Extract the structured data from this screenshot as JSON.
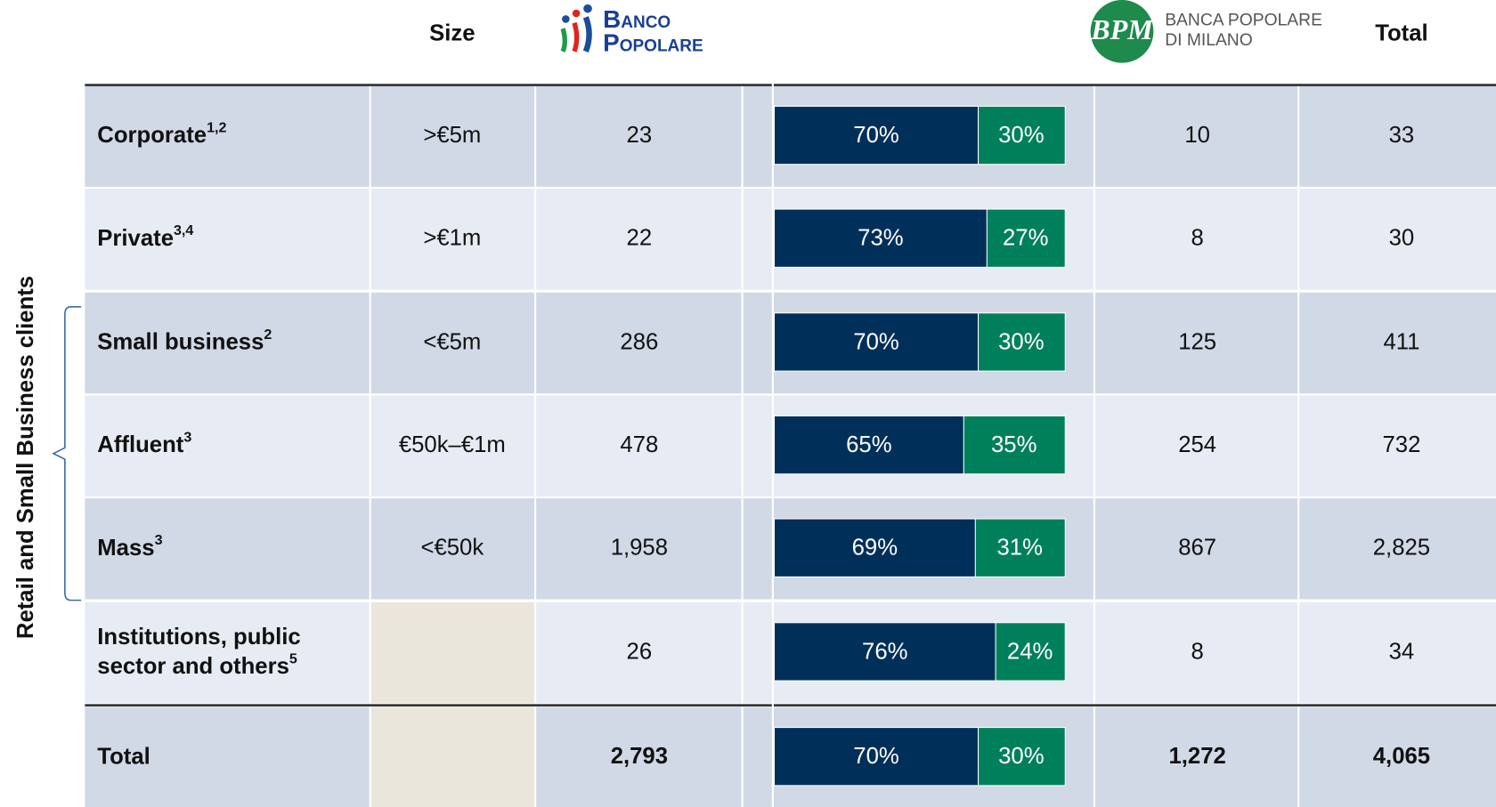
{
  "header": {
    "size": "Size",
    "banco_popolare": [
      "Banco",
      "Popolare"
    ],
    "bpm_logo": "BPM",
    "bpm": [
      "BANCA POPOLARE",
      "DI MILANO"
    ],
    "total": "Total"
  },
  "side_label": "Retail and Small Business clients",
  "rows": [
    {
      "name": [
        "Corporate"
      ],
      "note": "1,2",
      "size": ">€5m",
      "banco_popolare": "23",
      "split": [
        {
          "value": 70,
          "label": "70%"
        },
        {
          "value": 30,
          "label": "30%"
        }
      ],
      "bpm": "10",
      "total": "33"
    },
    {
      "name": [
        "Private"
      ],
      "note": "3,4",
      "size": ">€1m",
      "banco_popolare": "22",
      "split": [
        {
          "value": 73,
          "label": "73%"
        },
        {
          "value": 27,
          "label": "27%"
        }
      ],
      "bpm": "8",
      "total": "30"
    },
    {
      "name": [
        "Small business"
      ],
      "note": "2",
      "size": "<€5m",
      "banco_popolare": "286",
      "split": [
        {
          "value": 70,
          "label": "70%"
        },
        {
          "value": 30,
          "label": "30%"
        }
      ],
      "bpm": "125",
      "total": "411"
    },
    {
      "name": [
        "Affluent"
      ],
      "note": "3",
      "size": "€50k–€1m",
      "banco_popolare": "478",
      "split": [
        {
          "value": 65,
          "label": "65%"
        },
        {
          "value": 35,
          "label": "35%"
        }
      ],
      "bpm": "254",
      "total": "732"
    },
    {
      "name": [
        "Mass"
      ],
      "note": "3",
      "size": "<€50k",
      "banco_popolare": "1,958",
      "split": [
        {
          "value": 69,
          "label": "69%"
        },
        {
          "value": 31,
          "label": "31%"
        }
      ],
      "bpm": "867",
      "total": "2,825"
    },
    {
      "name": [
        "Institutions, public",
        "sector and others"
      ],
      "note": "5",
      "banco_popolare": "26",
      "split": [
        {
          "value": 76,
          "label": "76%"
        },
        {
          "value": 24,
          "label": "24%"
        }
      ],
      "bpm": "8",
      "total": "34"
    },
    {
      "name": [
        "Total"
      ],
      "banco_popolare": "2,793",
      "split": [
        {
          "value": 70,
          "label": "70%"
        },
        {
          "value": 30,
          "label": "30%"
        }
      ],
      "bpm": "1,272",
      "total": "4,065"
    }
  ]
}
